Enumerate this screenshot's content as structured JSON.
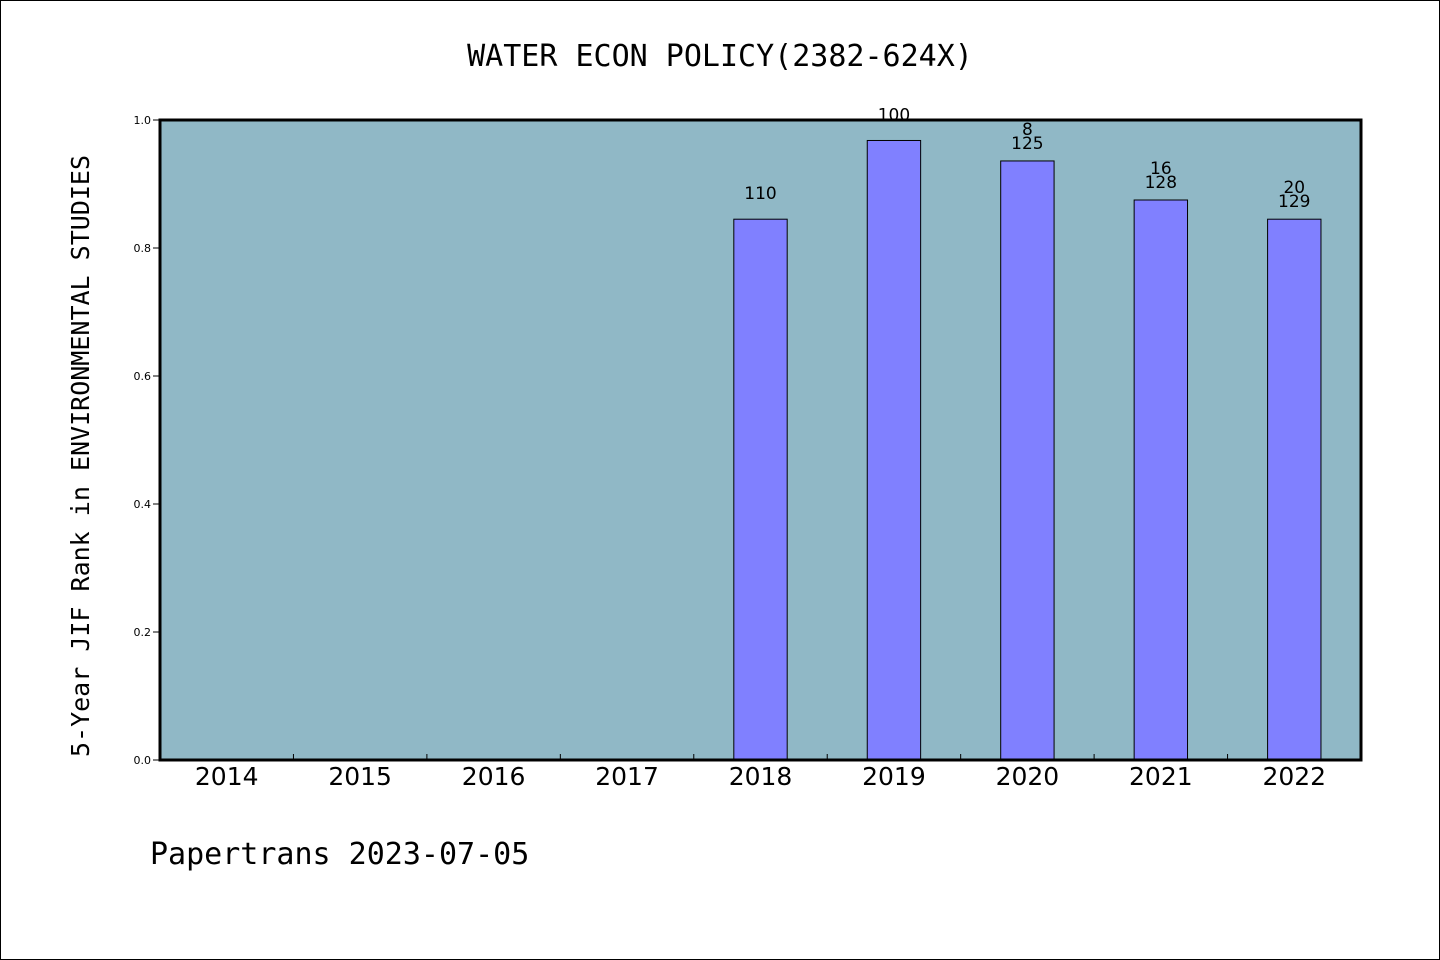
{
  "chart_data": {
    "type": "bar",
    "title": "WATER ECON POLICY(2382-624X)",
    "ylabel": "5-Year JIF Rank in ENVIRONMENTAL STUDIES",
    "xlabel": "",
    "categories": [
      "2014",
      "2015",
      "2016",
      "2017",
      "2018",
      "2019",
      "2020",
      "2021",
      "2022"
    ],
    "values": [
      null,
      null,
      null,
      null,
      0.845,
      0.968,
      0.936,
      0.875,
      0.845
    ],
    "rank_labels": [
      "",
      "",
      "",
      "",
      "",
      "",
      "8",
      "16",
      "20"
    ],
    "total_labels": [
      "",
      "",
      "",
      "",
      "110",
      "100",
      "125",
      "128",
      "129"
    ],
    "ylim": [
      0,
      1.0
    ],
    "yticks": [
      "0.0",
      "0.2",
      "0.4",
      "0.6",
      "0.8",
      "1.0"
    ],
    "grid": false,
    "colors": {
      "plot_background": "#90b8c6",
      "bar_fill": "#8080ff",
      "bar_stroke": "#000000"
    }
  },
  "footer": {
    "text": "Papertrans 2023-07-05"
  }
}
